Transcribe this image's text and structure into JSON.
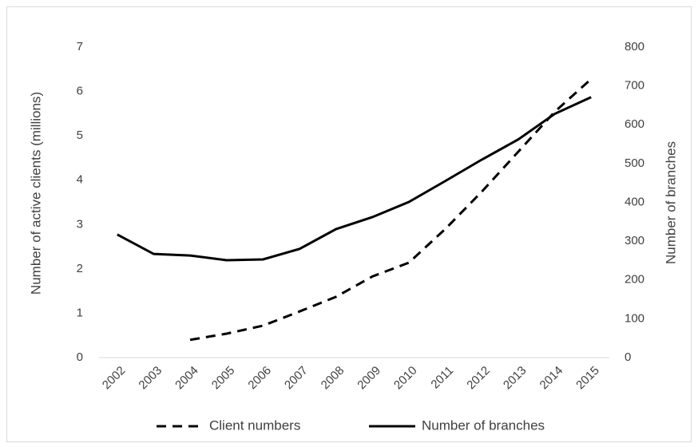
{
  "chart_data": {
    "type": "line",
    "categories": [
      "2002",
      "2003",
      "2004",
      "2005",
      "2006",
      "2007",
      "2008",
      "2009",
      "2010",
      "2011",
      "2012",
      "2013",
      "2014",
      "2015"
    ],
    "y_label": "Number of active clients (millions)",
    "y2_label": "Number of branches",
    "ylim": [
      0,
      7
    ],
    "yticks": [
      0,
      1,
      2,
      3,
      4,
      5,
      6,
      7
    ],
    "y2lim": [
      0,
      800
    ],
    "y2ticks": [
      0,
      100,
      200,
      300,
      400,
      500,
      600,
      700,
      800
    ],
    "grid": false,
    "legend": "bottom",
    "series": [
      {
        "name": "Client numbers",
        "color": "#000000",
        "line_style": "dashed",
        "values": [
          null,
          null,
          0.4,
          0.54,
          0.72,
          1.04,
          1.37,
          1.83,
          2.14,
          2.9,
          3.74,
          4.64,
          5.54,
          6.28
        ]
      },
      {
        "name": "Number of branches",
        "color": "#000000",
        "line_style": "solid",
        "axis": "y2",
        "values": [
          317,
          267,
          263,
          251,
          253,
          280,
          331,
          362,
          401,
          455,
          510,
          562,
          628,
          671
        ]
      }
    ]
  }
}
